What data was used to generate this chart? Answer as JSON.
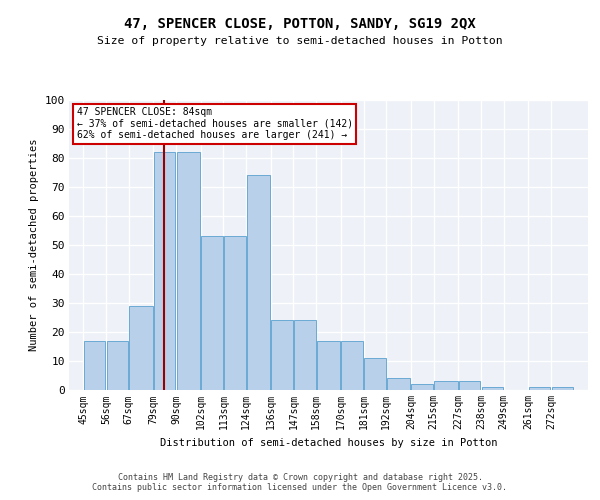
{
  "title1": "47, SPENCER CLOSE, POTTON, SANDY, SG19 2QX",
  "title2": "Size of property relative to semi-detached houses in Potton",
  "xlabel": "Distribution of semi-detached houses by size in Potton",
  "ylabel": "Number of semi-detached properties",
  "bar_labels": [
    "45sqm",
    "56sqm",
    "67sqm",
    "79sqm",
    "90sqm",
    "102sqm",
    "113sqm",
    "124sqm",
    "136sqm",
    "147sqm",
    "158sqm",
    "170sqm",
    "181sqm",
    "192sqm",
    "204sqm",
    "215sqm",
    "227sqm",
    "238sqm",
    "249sqm",
    "261sqm",
    "272sqm"
  ],
  "bar_heights": [
    17,
    17,
    29,
    82,
    82,
    53,
    53,
    74,
    24,
    24,
    17,
    17,
    11,
    4,
    2,
    3,
    3,
    1,
    0,
    1,
    1
  ],
  "bin_edges": [
    45,
    56,
    67,
    79,
    90,
    102,
    113,
    124,
    136,
    147,
    158,
    170,
    181,
    192,
    204,
    215,
    227,
    238,
    249,
    261,
    272,
    283
  ],
  "bar_color": "#b8d0ea",
  "bar_edge_color": "#6aaad4",
  "vline_x": 84,
  "vline_color": "#990000",
  "annotation_text": "47 SPENCER CLOSE: 84sqm\n← 37% of semi-detached houses are smaller (142)\n62% of semi-detached houses are larger (241) →",
  "annotation_box_color": "#cc0000",
  "ylim": [
    0,
    100
  ],
  "yticks": [
    0,
    10,
    20,
    30,
    40,
    50,
    60,
    70,
    80,
    90,
    100
  ],
  "background_color": "#eef2f8",
  "footer_text": "Contains HM Land Registry data © Crown copyright and database right 2025.\nContains public sector information licensed under the Open Government Licence v3.0."
}
